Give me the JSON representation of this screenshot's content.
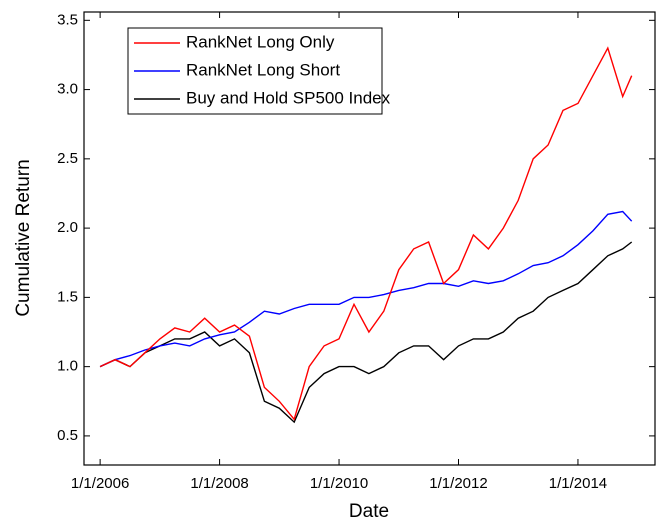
{
  "chart_data": {
    "type": "line",
    "xlabel": "Date",
    "ylabel": "Cumulative Return",
    "x": [
      2006,
      2006.25,
      2006.5,
      2006.75,
      2007,
      2007.25,
      2007.5,
      2007.75,
      2008,
      2008.25,
      2008.5,
      2008.75,
      2009,
      2009.25,
      2009.5,
      2009.75,
      2010,
      2010.25,
      2010.5,
      2010.75,
      2011,
      2011.25,
      2011.5,
      2011.75,
      2012,
      2012.25,
      2012.5,
      2012.75,
      2013,
      2013.25,
      2013.5,
      2013.75,
      2014,
      2014.25,
      2014.5,
      2014.75,
      2014.9
    ],
    "series": [
      {
        "name": "RankNet Long Only",
        "color": "#ff0000",
        "values": [
          1.0,
          1.05,
          1.0,
          1.1,
          1.2,
          1.28,
          1.25,
          1.35,
          1.25,
          1.3,
          1.22,
          0.85,
          0.75,
          0.62,
          1.0,
          1.15,
          1.2,
          1.45,
          1.25,
          1.4,
          1.7,
          1.85,
          1.9,
          1.6,
          1.7,
          1.95,
          1.85,
          2.0,
          2.2,
          2.5,
          2.6,
          2.85,
          2.9,
          3.1,
          3.3,
          2.95,
          3.1
        ]
      },
      {
        "name": "RankNet Long Short",
        "color": "#0000ff",
        "values": [
          1.0,
          1.05,
          1.08,
          1.12,
          1.15,
          1.17,
          1.15,
          1.2,
          1.23,
          1.25,
          1.32,
          1.4,
          1.38,
          1.42,
          1.45,
          1.45,
          1.45,
          1.5,
          1.5,
          1.52,
          1.55,
          1.57,
          1.6,
          1.6,
          1.58,
          1.62,
          1.6,
          1.62,
          1.67,
          1.73,
          1.75,
          1.8,
          1.88,
          1.98,
          2.1,
          2.12,
          2.05
        ]
      },
      {
        "name": "Buy and Hold SP500 Index",
        "color": "#000000",
        "values": [
          1.0,
          1.05,
          1.0,
          1.1,
          1.15,
          1.2,
          1.2,
          1.25,
          1.15,
          1.2,
          1.1,
          0.75,
          0.7,
          0.6,
          0.85,
          0.95,
          1.0,
          1.0,
          0.95,
          1.0,
          1.1,
          1.15,
          1.15,
          1.05,
          1.15,
          1.2,
          1.2,
          1.25,
          1.35,
          1.4,
          1.5,
          1.55,
          1.6,
          1.7,
          1.8,
          1.85,
          1.9
        ]
      }
    ],
    "xlim": [
      2005.73,
      2015.29
    ],
    "ylim": [
      0.29,
      3.56
    ],
    "xticks": [
      {
        "value": 2006,
        "label": "1/1/2006"
      },
      {
        "value": 2008,
        "label": "1/1/2008"
      },
      {
        "value": 2010,
        "label": "1/1/2010"
      },
      {
        "value": 2012,
        "label": "1/1/2012"
      },
      {
        "value": 2014,
        "label": "1/1/2014"
      }
    ],
    "yticks": [
      0.5,
      {
        "value": 1,
        "label": "1.0"
      },
      1.5,
      {
        "value": 2,
        "label": "2.0"
      },
      2.5,
      {
        "value": 3,
        "label": "3.0"
      },
      3.5
    ],
    "legend": "upper left",
    "grid": false
  }
}
